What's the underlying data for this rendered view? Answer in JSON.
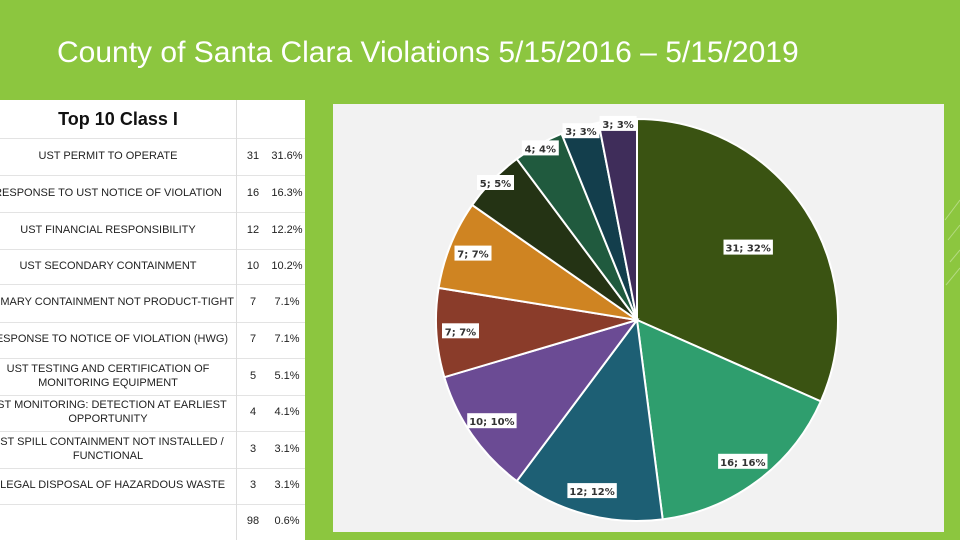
{
  "slide": {
    "title": "County of Santa Clara Violations 5/15/2016 – 5/15/2019"
  },
  "table": {
    "header": "Top 10 Class I",
    "rows": [
      {
        "name": "UST PERMIT TO OPERATE",
        "count": "31",
        "pct": "31.6%"
      },
      {
        "name": "RESPONSE TO UST NOTICE OF VIOLATION",
        "count": "16",
        "pct": "16.3%"
      },
      {
        "name": "UST FINANCIAL RESPONSIBILITY",
        "count": "12",
        "pct": "12.2%"
      },
      {
        "name": "UST SECONDARY CONTAINMENT",
        "count": "10",
        "pct": "10.2%"
      },
      {
        "name": "PRIMARY CONTAINMENT NOT PRODUCT-TIGHT",
        "count": "7",
        "pct": "7.1%"
      },
      {
        "name": "RESPONSE TO NOTICE OF VIOLATION (HWG)",
        "count": "7",
        "pct": "7.1%"
      },
      {
        "name": "UST TESTING AND CERTIFICATION OF MONITORING EQUIPMENT",
        "count": "5",
        "pct": "5.1%"
      },
      {
        "name": "UST MONITORING: DETECTION AT EARLIEST OPPORTUNITY",
        "count": "4",
        "pct": "4.1%"
      },
      {
        "name": "UST SPILL CONTAINMENT NOT INSTALLED / FUNCTIONAL",
        "count": "3",
        "pct": "3.1%"
      },
      {
        "name": "ILLEGAL DISPOSAL OF HAZARDOUS WASTE",
        "count": "3",
        "pct": "3.1%"
      }
    ],
    "total": {
      "name": "",
      "count": "98",
      "pct": "0.6%"
    }
  },
  "chart_data": {
    "type": "pie",
    "categories": [
      "UST PERMIT TO OPERATE",
      "RESPONSE TO UST NOTICE OF VIOLATION",
      "UST FINANCIAL RESPONSIBILITY",
      "UST SECONDARY CONTAINMENT",
      "PRIMARY CONTAINMENT NOT PRODUCT-TIGHT",
      "RESPONSE TO NOTICE OF VIOLATION (HWG)",
      "UST TESTING AND CERTIFICATION OF MONITORING EQUIPMENT",
      "UST MONITORING: DETECTION AT EARLIEST OPPORTUNITY",
      "UST SPILL CONTAINMENT NOT INSTALLED / FUNCTIONAL",
      "ILLEGAL DISPOSAL OF HAZARDOUS WASTE"
    ],
    "values": [
      31,
      16,
      12,
      10,
      7,
      7,
      5,
      4,
      3,
      3
    ],
    "data_labels": [
      "31; 32%",
      "16; 16%",
      "12; 12%",
      "10; 10%",
      "7; 7%",
      "7; 7%",
      "5; 5%",
      "4; 4%",
      "3; 3%",
      "3; 3%"
    ],
    "colors": [
      "#3a5312",
      "#2f9e6e",
      "#1d5f74",
      "#6b4b94",
      "#8a3c2a",
      "#cf8422",
      "#243314",
      "#205a3e",
      "#133e4c",
      "#3f2d5a"
    ],
    "title": "",
    "legend": "none"
  }
}
